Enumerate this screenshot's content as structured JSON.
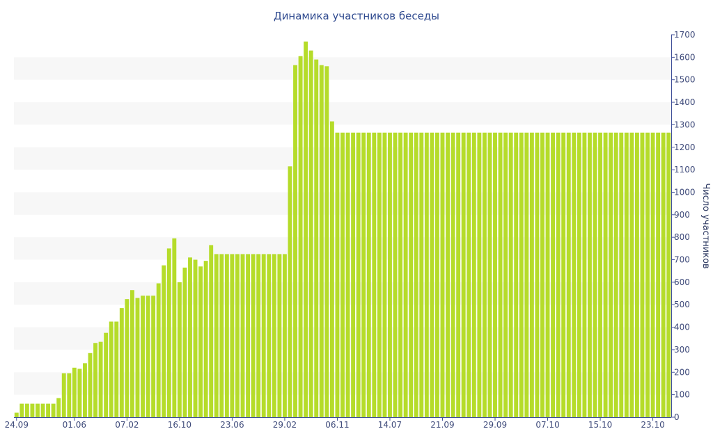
{
  "chart_data": {
    "type": "bar",
    "title": "Динамика участников беседы",
    "xlabel": "",
    "ylabel": "Число участников",
    "ylim": [
      0,
      1700
    ],
    "yticks": [
      0,
      100,
      200,
      300,
      400,
      500,
      600,
      700,
      800,
      900,
      1000,
      1100,
      1200,
      1300,
      1400,
      1500,
      1600,
      1700
    ],
    "y_axis_side": "right",
    "grid": "alternating-bands",
    "colors": {
      "bar": "#b5dc2a",
      "band": "#f7f7f7",
      "axis": "#3f4f99",
      "text": "#3e4a7a",
      "title": "#2f4a8f"
    },
    "x_tick_labels": [
      {
        "label": "24.09",
        "index": 0
      },
      {
        "label": "01.06",
        "index": 11
      },
      {
        "label": "07.02",
        "index": 21
      },
      {
        "label": "16.10",
        "index": 31
      },
      {
        "label": "23.06",
        "index": 41
      },
      {
        "label": "29.02",
        "index": 51
      },
      {
        "label": "06.11",
        "index": 61
      },
      {
        "label": "14.07",
        "index": 71
      },
      {
        "label": "21.09",
        "index": 81
      },
      {
        "label": "29.09",
        "index": 91
      },
      {
        "label": "07.10",
        "index": 101
      },
      {
        "label": "15.10",
        "index": 111
      },
      {
        "label": "23.10",
        "index": 121
      }
    ],
    "values": [
      20,
      60,
      60,
      60,
      60,
      60,
      60,
      60,
      85,
      195,
      195,
      220,
      215,
      240,
      285,
      330,
      335,
      375,
      425,
      425,
      485,
      525,
      565,
      530,
      540,
      540,
      540,
      595,
      675,
      750,
      795,
      600,
      665,
      710,
      700,
      670,
      695,
      765,
      725,
      725,
      725,
      725,
      725,
      725,
      725,
      725,
      725,
      725,
      725,
      725,
      725,
      725,
      1115,
      1565,
      1605,
      1670,
      1630,
      1590,
      1565,
      1560,
      1315,
      1265,
      1265,
      1265,
      1265,
      1265,
      1265,
      1265,
      1265,
      1265,
      1265,
      1265,
      1265,
      1265,
      1265,
      1265,
      1265,
      1265,
      1265,
      1265,
      1265,
      1265,
      1265,
      1265,
      1265,
      1265,
      1265,
      1265,
      1265,
      1265,
      1265,
      1265,
      1265,
      1265,
      1265,
      1265,
      1265,
      1265,
      1265,
      1265,
      1265,
      1265,
      1265,
      1265,
      1265,
      1265,
      1265,
      1265,
      1265,
      1265,
      1265,
      1265,
      1265,
      1265,
      1265,
      1265,
      1265,
      1265,
      1265,
      1265,
      1265,
      1265,
      1265,
      1265,
      1265
    ]
  }
}
